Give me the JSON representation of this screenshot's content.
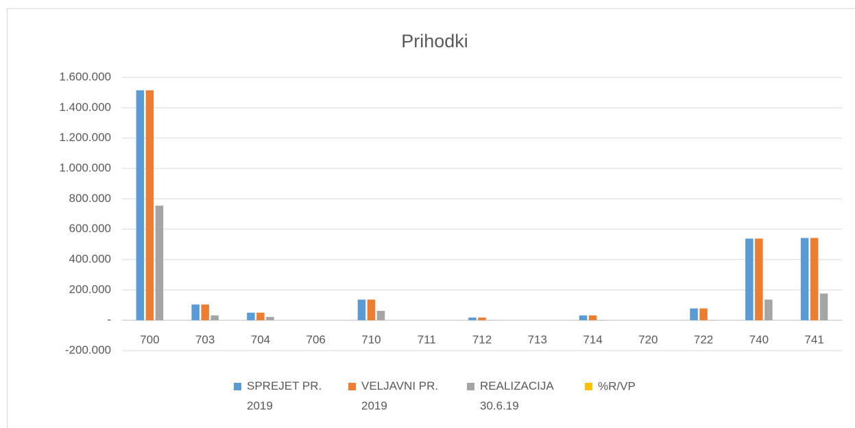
{
  "chart_data": {
    "type": "bar",
    "title": "Prihodki",
    "categories": [
      "700",
      "703",
      "704",
      "706",
      "710",
      "711",
      "712",
      "713",
      "714",
      "720",
      "722",
      "740",
      "741"
    ],
    "series": [
      {
        "name": "SPREJET PR. 2019",
        "color": "#5b9bd5",
        "values": [
          1515000,
          104000,
          50000,
          0,
          136000,
          0,
          18000,
          0,
          32000,
          0,
          78000,
          538000,
          542000
        ]
      },
      {
        "name": "VELJAVNI PR. 2019",
        "color": "#ed7d31",
        "values": [
          1515000,
          104000,
          50000,
          0,
          136000,
          0,
          18000,
          0,
          32000,
          0,
          78000,
          538000,
          542000
        ]
      },
      {
        "name": "REALIZACIJA 30.6.19",
        "color": "#a5a5a5",
        "values": [
          755000,
          32000,
          22000,
          0,
          62000,
          0,
          1000,
          0,
          2000,
          0,
          2000,
          136000,
          176000
        ]
      },
      {
        "name": "%R/VP",
        "color": "#ffc000",
        "values": [
          50,
          31,
          44,
          0,
          46,
          0,
          6,
          0,
          6,
          0,
          3,
          25,
          32
        ]
      }
    ],
    "ylim": [
      -200000,
      1600000
    ],
    "yticks": [
      {
        "value": -200000,
        "label": "-200.000"
      },
      {
        "value": 0,
        "label": "-"
      },
      {
        "value": 200000,
        "label": "200.000"
      },
      {
        "value": 400000,
        "label": "400.000"
      },
      {
        "value": 600000,
        "label": "600.000"
      },
      {
        "value": 800000,
        "label": "800.000"
      },
      {
        "value": 1000000,
        "label": "1.000.000"
      },
      {
        "value": 1200000,
        "label": "1.200.000"
      },
      {
        "value": 1400000,
        "label": "1.400.000"
      },
      {
        "value": 1600000,
        "label": "1.600.000"
      }
    ],
    "grid": true,
    "legend": "bottom"
  }
}
